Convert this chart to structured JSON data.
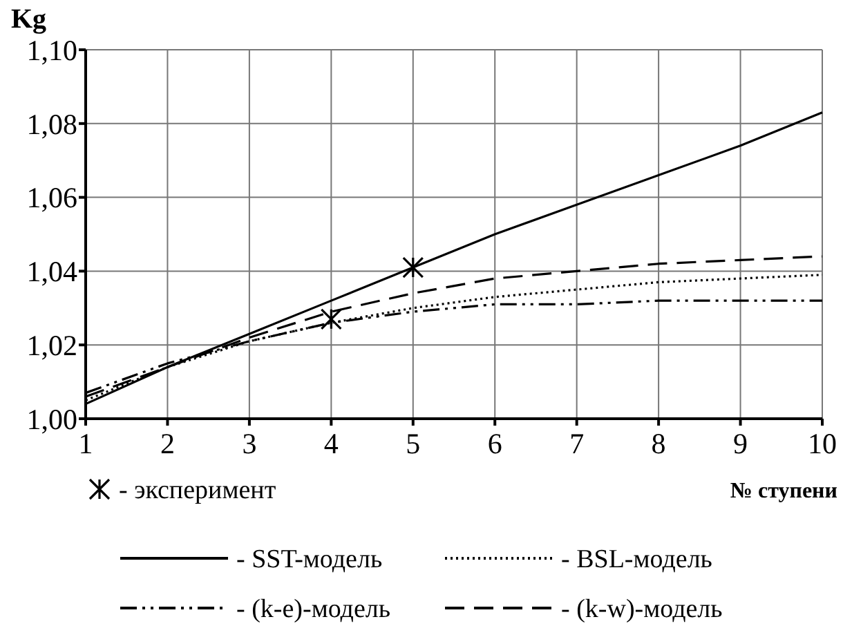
{
  "chart_data": {
    "type": "line",
    "xlabel": "№ ступени",
    "ylabel": "Kg",
    "x": [
      1,
      2,
      3,
      4,
      5,
      6,
      7,
      8,
      9,
      10
    ],
    "xlim": [
      1,
      10
    ],
    "xticks": [
      1,
      2,
      3,
      4,
      5,
      6,
      7,
      8,
      9,
      10
    ],
    "ylim": [
      1,
      1.1
    ],
    "yticks": [
      {
        "value": 1,
        "label": "1,00"
      },
      {
        "value": 1.02,
        "label": "1,02"
      },
      {
        "value": 1.04,
        "label": "1,04"
      },
      {
        "value": 1.06,
        "label": "1,06"
      },
      {
        "value": 1.08,
        "label": "1,08"
      },
      {
        "value": 1.1,
        "label": "1,10"
      }
    ],
    "grid": true,
    "legend": "bottom",
    "marker": "none",
    "series": [
      {
        "name": "- SST-модель",
        "color": "#000000",
        "line_style": "solid",
        "values": [
          1.004,
          1.014,
          1.023,
          1.032,
          1.041,
          1.05,
          1.058,
          1.066,
          1.074,
          1.083
        ]
      },
      {
        "name": "- BSL-модель",
        "color": "#000000",
        "line_style": "dotted",
        "values": [
          1.005,
          1.014,
          1.021,
          1.026,
          1.03,
          1.033,
          1.035,
          1.037,
          1.038,
          1.039
        ]
      },
      {
        "name": "- (k-e)-модель",
        "color": "#000000",
        "line_style": "dashdot",
        "values": [
          1.007,
          1.015,
          1.021,
          1.026,
          1.029,
          1.031,
          1.031,
          1.032,
          1.032,
          1.032
        ]
      },
      {
        "name": "- (k-w)-модель",
        "color": "#000000",
        "line_style": "dashed",
        "values": [
          1.006,
          1.014,
          1.022,
          1.029,
          1.034,
          1.038,
          1.04,
          1.042,
          1.043,
          1.044
        ]
      },
      {
        "name": "- эксперимент",
        "type": "scatter",
        "marker": "cross",
        "color": "#000000",
        "x": [
          4,
          5
        ],
        "values": [
          1.027,
          1.041
        ]
      }
    ]
  }
}
